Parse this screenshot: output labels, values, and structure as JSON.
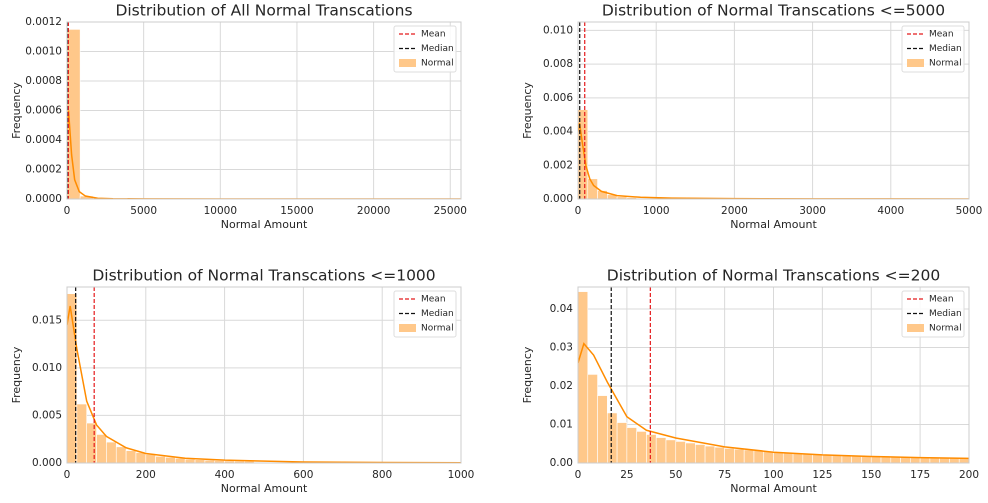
{
  "chart_data": [
    {
      "type": "histogram",
      "title": "Distribution of All Normal Transcations",
      "x_label": "Normal Amount",
      "y_label": "Frequency",
      "name": "Normal",
      "color": "#ffc88a",
      "grid": true,
      "legend": "upper right",
      "bins": [
        0,
        857,
        1713,
        2570,
        3427,
        4283,
        5140
      ],
      "values": [
        0.00115,
        2e-05,
        3e-06,
        1e-06,
        5e-07,
        2e-07
      ],
      "kde": {
        "color": "#ff8c00",
        "x": [
          0,
          100,
          300,
          500,
          800,
          1200,
          2000,
          3000,
          5000,
          10000,
          15000,
          20000,
          25700
        ],
        "y": [
          0.00045,
          0.0006,
          0.0003,
          0.00013,
          5e-05,
          2e-05,
          5e-06,
          2e-06,
          5e-07,
          1e-07,
          0,
          0,
          0
        ]
      },
      "lines": [
        {
          "name": "Mean",
          "value": 88.3,
          "color": "#e41a1c"
        },
        {
          "name": "Median",
          "value": 22,
          "color": "#111111"
        }
      ],
      "xlim": [
        0,
        25700
      ],
      "xticks": [
        0,
        5000,
        10000,
        15000,
        20000,
        25000
      ],
      "ylim": [
        0,
        0.0012
      ],
      "yticks": [
        {
          "value": 0,
          "label": "0.0000"
        },
        0.0002,
        0.0004,
        0.0006,
        0.0008,
        {
          "value": 0.001,
          "label": "0.0010"
        },
        0.0012
      ]
    },
    {
      "type": "histogram",
      "title": "Distribution of Normal Transcations <=5000",
      "x_label": "Normal Amount",
      "y_label": "Frequency",
      "name": "Normal",
      "color": "#ffc88a",
      "grid": true,
      "legend": "upper right",
      "bins": [
        0,
        125,
        250,
        375,
        500,
        625,
        750,
        875,
        1000
      ],
      "values": [
        0.0053,
        0.0012,
        0.0005,
        0.00025,
        0.00013,
        8e-05,
        5e-05,
        3e-05
      ],
      "kde": {
        "color": "#ff8c00",
        "x": [
          0,
          20,
          50,
          100,
          150,
          200,
          300,
          500,
          800,
          1200,
          2000,
          3000,
          4000,
          5000
        ],
        "y": [
          0.004,
          0.0045,
          0.0035,
          0.002,
          0.0012,
          0.0008,
          0.00045,
          0.0002,
          0.0001,
          5e-05,
          2e-05,
          1e-05,
          5e-06,
          0
        ]
      },
      "lines": [
        {
          "name": "Mean",
          "value": 86,
          "color": "#e41a1c"
        },
        {
          "name": "Median",
          "value": 22,
          "color": "#111111"
        }
      ],
      "xlim": [
        0,
        5000
      ],
      "xticks": [
        0,
        1000,
        2000,
        3000,
        4000,
        5000
      ],
      "ylim": [
        0,
        0.0105
      ],
      "yticks": [
        {
          "value": 0,
          "label": "0.000"
        },
        0.002,
        0.004,
        0.006,
        0.008,
        {
          "value": 0.01,
          "label": "0.010"
        }
      ]
    },
    {
      "type": "histogram",
      "title": "Distribution of Normal Transcations <=1000",
      "x_label": "Normal Amount",
      "y_label": "Frequency",
      "name": "Normal",
      "color": "#ffc88a",
      "grid": true,
      "legend": "upper right",
      "bins": [
        0,
        25,
        50,
        75,
        100,
        125,
        150,
        175,
        200,
        225,
        250,
        275,
        300,
        325,
        350,
        375,
        400,
        425,
        450,
        475
      ],
      "values": [
        0.0178,
        0.0062,
        0.0042,
        0.003,
        0.0022,
        0.0017,
        0.0013,
        0.0011,
        0.0009,
        0.0007,
        0.0006,
        0.0005,
        0.0004,
        0.00035,
        0.0003,
        0.00026,
        0.00022,
        0.0002,
        0.00018
      ],
      "kde": {
        "color": "#ff8c00",
        "x": [
          0,
          8,
          25,
          50,
          75,
          100,
          150,
          200,
          300,
          400,
          600,
          800,
          1000
        ],
        "y": [
          0.0145,
          0.0165,
          0.012,
          0.0065,
          0.004,
          0.0028,
          0.0016,
          0.001,
          0.0005,
          0.0003,
          0.0001,
          5e-05,
          2e-05
        ]
      },
      "lines": [
        {
          "name": "Mean",
          "value": 69,
          "color": "#e41a1c"
        },
        {
          "name": "Median",
          "value": 22,
          "color": "#111111"
        }
      ],
      "xlim": [
        0,
        1000
      ],
      "xticks": [
        0,
        200,
        400,
        600,
        800,
        1000
      ],
      "ylim": [
        0,
        0.0185
      ],
      "yticks": [
        {
          "value": 0,
          "label": "0.000"
        },
        0.005,
        {
          "value": 0.01,
          "label": "0.010"
        },
        0.015
      ]
    },
    {
      "type": "histogram",
      "title": "Distribution of Normal Transcations <=200",
      "x_label": "Normal Amount",
      "y_label": "Frequency",
      "name": "Normal",
      "color": "#ffc88a",
      "grid": true,
      "legend": "upper right",
      "bins": [
        0,
        5,
        10,
        15,
        20,
        25,
        30,
        35,
        40,
        45,
        50,
        55,
        60,
        65,
        70,
        75,
        80,
        85,
        90,
        95,
        100,
        105,
        110,
        115,
        120,
        125,
        130,
        135,
        140,
        145,
        150,
        155,
        160,
        165,
        170,
        175,
        180,
        185,
        190,
        195,
        200
      ],
      "values": [
        0.0445,
        0.023,
        0.0175,
        0.013,
        0.0105,
        0.0092,
        0.0082,
        0.0074,
        0.0066,
        0.006,
        0.0056,
        0.0052,
        0.0048,
        0.0044,
        0.0041,
        0.0038,
        0.0036,
        0.0034,
        0.0032,
        0.003,
        0.0028,
        0.0026,
        0.0025,
        0.0024,
        0.0022,
        0.0021,
        0.002,
        0.0019,
        0.0018,
        0.0018,
        0.0017,
        0.0016,
        0.0016,
        0.0015,
        0.0015,
        0.0014,
        0.0014,
        0.0013,
        0.0013,
        0.0012
      ],
      "kde": {
        "color": "#ff8c00",
        "x": [
          0,
          3,
          8,
          15,
          25,
          35,
          50,
          75,
          100,
          125,
          150,
          175,
          200
        ],
        "y": [
          0.026,
          0.031,
          0.028,
          0.021,
          0.012,
          0.0085,
          0.0065,
          0.0042,
          0.0028,
          0.0021,
          0.0017,
          0.0014,
          0.0012
        ]
      },
      "lines": [
        {
          "name": "Mean",
          "value": 37,
          "color": "#e41a1c"
        },
        {
          "name": "Median",
          "value": 17,
          "color": "#111111"
        }
      ],
      "xlim": [
        0,
        200
      ],
      "xticks": [
        0,
        25,
        50,
        75,
        100,
        125,
        150,
        175,
        200
      ],
      "ylim": [
        0,
        0.0457
      ],
      "yticks": [
        {
          "value": 0,
          "label": "0.00"
        },
        0.01,
        0.02,
        0.03,
        0.04
      ]
    }
  ]
}
